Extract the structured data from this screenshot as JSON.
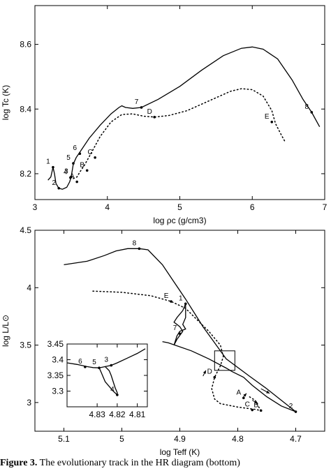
{
  "chart_data": [
    {
      "type": "line",
      "xlabel": "log ρc (g/cm3)",
      "ylabel": "log Tc (K)",
      "xlim": [
        3.0,
        7.0
      ],
      "ylim": [
        8.12,
        8.72
      ],
      "xticks": [
        "3",
        "4",
        "5",
        "6",
        "7"
      ],
      "yticks": [
        "8.2",
        "8.4",
        "8.6"
      ],
      "series": [
        {
          "style": "solid",
          "points": [
            [
              3.18,
              8.18
            ],
            [
              3.22,
              8.19
            ],
            [
              3.25,
              8.22
            ],
            [
              3.27,
              8.2
            ],
            [
              3.29,
              8.17
            ],
            [
              3.33,
              8.155
            ],
            [
              3.38,
              8.152
            ],
            [
              3.44,
              8.158
            ],
            [
              3.48,
              8.175
            ],
            [
              3.5,
              8.19
            ],
            [
              3.53,
              8.23
            ],
            [
              3.57,
              8.25
            ],
            [
              3.63,
              8.27
            ],
            [
              3.75,
              8.31
            ],
            [
              3.9,
              8.35
            ],
            [
              4.05,
              8.385
            ],
            [
              4.16,
              8.405
            ],
            [
              4.2,
              8.41
            ],
            [
              4.25,
              8.405
            ],
            [
              4.35,
              8.402
            ],
            [
              4.47,
              8.405
            ],
            [
              4.7,
              8.43
            ],
            [
              5.0,
              8.47
            ],
            [
              5.3,
              8.52
            ],
            [
              5.6,
              8.565
            ],
            [
              5.85,
              8.588
            ],
            [
              6.0,
              8.592
            ],
            [
              6.15,
              8.585
            ],
            [
              6.35,
              8.555
            ],
            [
              6.55,
              8.49
            ],
            [
              6.7,
              8.43
            ],
            [
              6.82,
              8.39
            ],
            [
              6.93,
              8.345
            ]
          ]
        },
        {
          "style": "dotted",
          "points": [
            [
              3.53,
              8.185
            ],
            [
              3.58,
              8.19
            ],
            [
              3.62,
              8.205
            ],
            [
              3.68,
              8.225
            ],
            [
              3.78,
              8.265
            ],
            [
              3.9,
              8.315
            ],
            [
              4.05,
              8.36
            ],
            [
              4.2,
              8.383
            ],
            [
              4.35,
              8.385
            ],
            [
              4.5,
              8.378
            ],
            [
              4.65,
              8.375
            ],
            [
              4.85,
              8.38
            ],
            [
              5.1,
              8.395
            ],
            [
              5.4,
              8.425
            ],
            [
              5.7,
              8.455
            ],
            [
              5.85,
              8.463
            ],
            [
              6.0,
              8.46
            ],
            [
              6.15,
              8.44
            ],
            [
              6.27,
              8.395
            ],
            [
              6.32,
              8.355
            ],
            [
              6.4,
              8.32
            ],
            [
              6.45,
              8.3
            ]
          ]
        }
      ],
      "points_labeled": [
        {
          "label": "1",
          "x": 3.25,
          "y": 8.22
        },
        {
          "label": "2",
          "x": 3.33,
          "y": 8.155
        },
        {
          "label": "3",
          "x": 3.5,
          "y": 8.19
        },
        {
          "label": "4",
          "x": 3.49,
          "y": 8.188
        },
        {
          "label": "5",
          "x": 3.53,
          "y": 8.232
        },
        {
          "label": "6",
          "x": 3.62,
          "y": 8.262
        },
        {
          "label": "7",
          "x": 4.47,
          "y": 8.405
        },
        {
          "label": "8",
          "x": 6.82,
          "y": 8.39
        },
        {
          "label": "A",
          "x": 3.58,
          "y": 8.175
        },
        {
          "label": "B",
          "x": 3.72,
          "y": 8.21
        },
        {
          "label": "C",
          "x": 3.83,
          "y": 8.25
        },
        {
          "label": "D",
          "x": 4.65,
          "y": 8.375
        },
        {
          "label": "E",
          "x": 6.27,
          "y": 8.36
        }
      ]
    },
    {
      "type": "line",
      "xlabel": "log Teff (K)",
      "ylabel": "log L/L⊙",
      "xlim": [
        5.15,
        4.65
      ],
      "ylim": [
        2.75,
        4.5
      ],
      "xticks": [
        "5.1",
        "5",
        "4.9",
        "4.8",
        "4.7"
      ],
      "yticks": [
        "3",
        "3.5",
        "4",
        "4.5"
      ],
      "series": [
        {
          "style": "solid",
          "points": [
            [
              5.1,
              4.2
            ],
            [
              5.06,
              4.23
            ],
            [
              5.03,
              4.28
            ],
            [
              5.01,
              4.32
            ],
            [
              4.99,
              4.34
            ],
            [
              4.97,
              4.34
            ],
            [
              4.955,
              4.33
            ],
            [
              4.93,
              4.2
            ],
            [
              4.91,
              4.05
            ],
            [
              4.89,
              3.9
            ],
            [
              4.875,
              3.78
            ],
            [
              4.86,
              3.66
            ],
            [
              4.84,
              3.52
            ],
            [
              4.82,
              3.38
            ],
            [
              4.78,
              3.23
            ],
            [
              4.75,
              3.12
            ],
            [
              4.72,
              3.0
            ],
            [
              4.7,
              2.92
            ],
            [
              4.725,
              2.97
            ],
            [
              4.75,
              3.05
            ],
            [
              4.775,
              3.15
            ],
            [
              4.79,
              3.22
            ],
            [
              4.81,
              3.27
            ],
            [
              4.82,
              3.3
            ],
            [
              4.85,
              3.38
            ],
            [
              4.88,
              3.45
            ],
            [
              4.92,
              3.52
            ],
            [
              4.93,
              3.53
            ]
          ]
        },
        {
          "style": "solid",
          "points": [
            [
              4.89,
              3.86
            ],
            [
              4.895,
              3.8
            ],
            [
              4.905,
              3.74
            ],
            [
              4.91,
              3.7
            ],
            [
              4.9,
              3.66
            ],
            [
              4.895,
              3.62
            ],
            [
              4.905,
              3.55
            ],
            [
              4.91,
              3.5
            ],
            [
              4.905,
              3.58
            ],
            [
              4.9,
              3.62
            ],
            [
              4.89,
              3.64
            ],
            [
              4.895,
              3.68
            ],
            [
              4.89,
              3.74
            ],
            [
              4.89,
              3.86
            ]
          ]
        },
        {
          "style": "dotted",
          "points": [
            [
              5.05,
              3.97
            ],
            [
              5.0,
              3.96
            ],
            [
              4.95,
              3.93
            ],
            [
              4.915,
              3.88
            ],
            [
              4.89,
              3.82
            ],
            [
              4.87,
              3.72
            ],
            [
              4.85,
              3.62
            ],
            [
              4.83,
              3.5
            ],
            [
              4.825,
              3.4
            ],
            [
              4.83,
              3.32
            ],
            [
              4.84,
              3.22
            ],
            [
              4.845,
              3.12
            ],
            [
              4.84,
              3.03
            ],
            [
              4.83,
              2.99
            ],
            [
              4.8,
              2.96
            ],
            [
              4.77,
              2.94
            ],
            [
              4.76,
              2.93
            ],
            [
              4.765,
              2.97
            ],
            [
              4.77,
              3.02
            ],
            [
              4.78,
              3.05
            ]
          ]
        }
      ],
      "points_labeled": [
        {
          "label": "1",
          "x": 4.89,
          "y": 3.86
        },
        {
          "label": "2",
          "x": 4.7,
          "y": 2.92
        },
        {
          "label": "7",
          "x": 4.9,
          "y": 3.6
        },
        {
          "label": "8",
          "x": 4.97,
          "y": 4.34
        },
        {
          "label": "A",
          "x": 4.79,
          "y": 3.04
        },
        {
          "label": "B",
          "x": 4.76,
          "y": 2.93
        },
        {
          "label": "C",
          "x": 4.775,
          "y": 2.935
        },
        {
          "label": "D",
          "x": 4.84,
          "y": 3.22
        },
        {
          "label": "E",
          "x": 4.915,
          "y": 3.88
        }
      ],
      "inset": {
        "xlim": [
          4.845,
          4.805
        ],
        "ylim": [
          3.25,
          3.45
        ],
        "xticks": [
          "4.83",
          "4.82",
          "4.81"
        ],
        "yticks": [
          "3.3",
          "3.35",
          "3.4",
          "3.45"
        ],
        "series": [
          {
            "style": "solid",
            "points": [
              [
                4.845,
                3.39
              ],
              [
                4.84,
                3.385
              ],
              [
                4.835,
                3.378
              ],
              [
                4.832,
                3.375
              ],
              [
                4.829,
                3.374
              ],
              [
                4.826,
                3.378
              ],
              [
                4.823,
                3.382
              ],
              [
                4.82,
                3.39
              ],
              [
                4.815,
                3.405
              ],
              [
                4.81,
                3.42
              ],
              [
                4.806,
                3.435
              ]
            ]
          },
          {
            "style": "solid",
            "points": [
              [
                4.829,
                3.374
              ],
              [
                4.828,
                3.36
              ],
              [
                4.827,
                3.345
              ],
              [
                4.826,
                3.33
              ],
              [
                4.824,
                3.315
              ],
              [
                4.822,
                3.3
              ],
              [
                4.82,
                3.288
              ],
              [
                4.82,
                3.295
              ],
              [
                4.821,
                3.31
              ],
              [
                4.822,
                3.33
              ],
              [
                4.823,
                3.35
              ],
              [
                4.824,
                3.365
              ],
              [
                4.826,
                3.378
              ]
            ]
          }
        ],
        "points_labeled": [
          {
            "label": "3",
            "x": 4.823,
            "y": 3.382
          },
          {
            "label": "4",
            "x": 4.82,
            "y": 3.288
          },
          {
            "label": "5",
            "x": 4.829,
            "y": 3.374
          },
          {
            "label": "6",
            "x": 4.836,
            "y": 3.377
          }
        ]
      }
    }
  ],
  "caption": {
    "label": "Figure 3.",
    "text": "The evolutionary track in the HR diagram (bottom)"
  }
}
